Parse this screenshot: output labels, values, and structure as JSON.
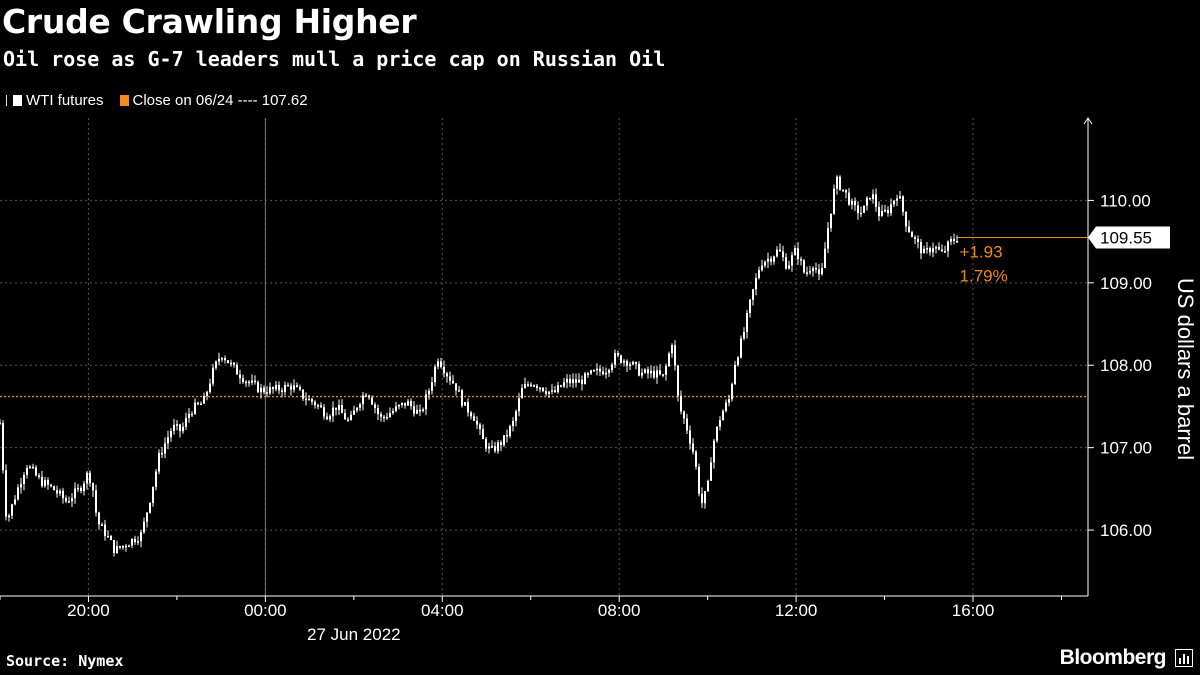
{
  "header": {
    "title": "Crude Crawling Higher",
    "subtitle": "Oil rose as G-7 leaders mull a price cap on Russian Oil"
  },
  "legend": {
    "series_label": "WTI futures",
    "close_label": "Close on 06/24 ---- 107.62"
  },
  "footer": {
    "source": "Source: Nymex",
    "brand": "Bloomberg"
  },
  "colors": {
    "background": "#000000",
    "series": "#ffffff",
    "close_line": "#f08a18",
    "grid": "#555555"
  },
  "chart_data": {
    "type": "candlestick",
    "ylabel": "US dollars a barrel",
    "ylim": [
      105.2,
      111.0
    ],
    "yticks": [
      106.0,
      107.0,
      108.0,
      109.0,
      110.0
    ],
    "ytick_labels": [
      "106.00",
      "107.00",
      "108.00",
      "109.00",
      "110.00"
    ],
    "x_unit": "hours since 18:00 on 26 Jun 2022",
    "xlim": [
      18.0,
      42.6
    ],
    "xticks": [
      20,
      24,
      28,
      32,
      36,
      40
    ],
    "xtick_labels": [
      "20:00",
      "00:00",
      "04:00",
      "08:00",
      "12:00",
      "16:00"
    ],
    "date_label": "27 Jun 2022",
    "previous_close": 107.62,
    "last_value": "109.55",
    "change_abs": "+1.93",
    "change_pct": "1.79%",
    "series": [
      {
        "name": "WTI futures",
        "points": [
          [
            18.0,
            107.3
          ],
          [
            18.15,
            106.1
          ],
          [
            18.4,
            106.5
          ],
          [
            18.6,
            106.8
          ],
          [
            18.9,
            106.6
          ],
          [
            19.2,
            106.5
          ],
          [
            19.5,
            106.35
          ],
          [
            19.8,
            106.5
          ],
          [
            20.0,
            106.7
          ],
          [
            20.1,
            106.5
          ],
          [
            20.2,
            106.1
          ],
          [
            20.4,
            105.95
          ],
          [
            20.6,
            105.75
          ],
          [
            20.9,
            105.85
          ],
          [
            21.2,
            105.95
          ],
          [
            21.4,
            106.4
          ],
          [
            21.6,
            106.9
          ],
          [
            21.9,
            107.25
          ],
          [
            22.1,
            107.2
          ],
          [
            22.3,
            107.45
          ],
          [
            22.6,
            107.55
          ],
          [
            22.8,
            107.9
          ],
          [
            23.0,
            108.15
          ],
          [
            23.3,
            107.95
          ],
          [
            23.6,
            107.8
          ],
          [
            23.9,
            107.7
          ],
          [
            24.2,
            107.7
          ],
          [
            24.6,
            107.75
          ],
          [
            24.9,
            107.6
          ],
          [
            25.1,
            107.55
          ],
          [
            25.4,
            107.4
          ],
          [
            25.6,
            107.5
          ],
          [
            25.9,
            107.3
          ],
          [
            26.1,
            107.55
          ],
          [
            26.3,
            107.7
          ],
          [
            26.6,
            107.35
          ],
          [
            26.9,
            107.45
          ],
          [
            27.2,
            107.55
          ],
          [
            27.5,
            107.4
          ],
          [
            27.7,
            107.7
          ],
          [
            27.9,
            108.1
          ],
          [
            28.1,
            107.9
          ],
          [
            28.3,
            107.75
          ],
          [
            28.5,
            107.5
          ],
          [
            28.7,
            107.4
          ],
          [
            28.9,
            107.1
          ],
          [
            29.1,
            106.95
          ],
          [
            29.4,
            107.1
          ],
          [
            29.6,
            107.3
          ],
          [
            29.8,
            107.7
          ],
          [
            30.0,
            107.8
          ],
          [
            30.2,
            107.75
          ],
          [
            30.5,
            107.65
          ],
          [
            30.8,
            107.8
          ],
          [
            31.1,
            107.8
          ],
          [
            31.4,
            107.9
          ],
          [
            31.7,
            107.95
          ],
          [
            31.9,
            108.1
          ],
          [
            32.2,
            108.05
          ],
          [
            32.5,
            107.9
          ],
          [
            32.8,
            107.9
          ],
          [
            33.0,
            107.85
          ],
          [
            33.2,
            108.3
          ],
          [
            33.35,
            107.5
          ],
          [
            33.5,
            107.3
          ],
          [
            33.7,
            106.9
          ],
          [
            33.85,
            106.3
          ],
          [
            34.0,
            106.5
          ],
          [
            34.1,
            107.0
          ],
          [
            34.3,
            107.4
          ],
          [
            34.5,
            107.6
          ],
          [
            34.6,
            108.0
          ],
          [
            34.8,
            108.35
          ],
          [
            35.0,
            108.85
          ],
          [
            35.2,
            109.25
          ],
          [
            35.4,
            109.3
          ],
          [
            35.6,
            109.4
          ],
          [
            35.8,
            109.2
          ],
          [
            36.0,
            109.4
          ],
          [
            36.2,
            109.1
          ],
          [
            36.4,
            109.25
          ],
          [
            36.55,
            109.0
          ],
          [
            36.7,
            109.6
          ],
          [
            36.9,
            110.25
          ],
          [
            37.1,
            110.1
          ],
          [
            37.3,
            109.9
          ],
          [
            37.5,
            109.85
          ],
          [
            37.7,
            110.1
          ],
          [
            37.9,
            109.8
          ],
          [
            38.1,
            109.9
          ],
          [
            38.3,
            110.1
          ],
          [
            38.5,
            109.7
          ],
          [
            38.7,
            109.5
          ],
          [
            38.9,
            109.35
          ],
          [
            39.1,
            109.45
          ],
          [
            39.3,
            109.35
          ],
          [
            39.5,
            109.5
          ],
          [
            39.65,
            109.55
          ]
        ]
      }
    ]
  }
}
